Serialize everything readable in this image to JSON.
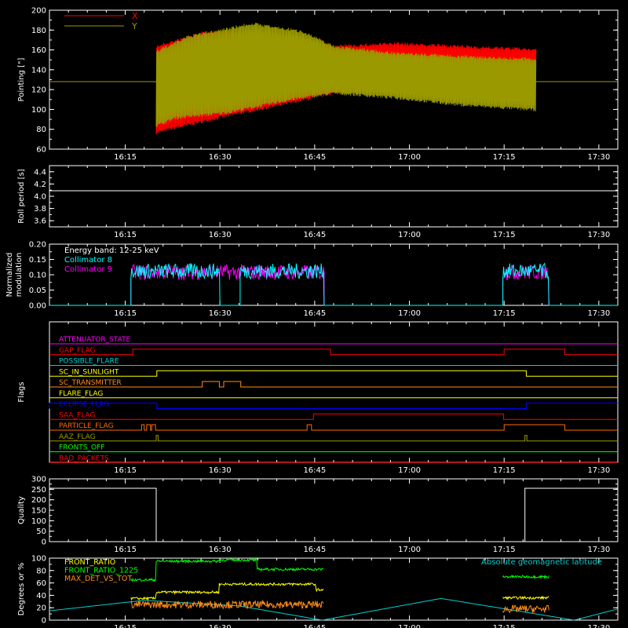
{
  "colors": {
    "background": "#000000",
    "axes": "#ffffff",
    "red": "#ff0000",
    "olive": "#9a9a00",
    "white": "#ffffff",
    "cyan": "#00ffff",
    "magenta": "#ff00ff",
    "yellow": "#ffff00",
    "green": "#00ff00",
    "orange": "#ff8c1a",
    "blue": "#0000ff",
    "teal": "#00d0d0",
    "darkorange": "#ff6a00"
  },
  "chart_data": [
    {
      "type": "line",
      "id": "pointing",
      "ylabel": "Pointing [\"]",
      "ylim": [
        60,
        200
      ],
      "yticks": [
        60,
        80,
        100,
        120,
        140,
        160,
        180,
        200
      ],
      "xlim_minutes": [
        0,
        90
      ],
      "xtick_labels": [
        "16:15",
        "16:30",
        "16:45",
        "17:00",
        "17:15",
        "17:30"
      ],
      "legend": [
        "X",
        "Y"
      ],
      "reference_line": 128,
      "data_start": "16:17",
      "data_end": "17:18",
      "series": [
        {
          "name": "X",
          "color_key": "red",
          "min_env": [
            [
              16.9,
              75
            ],
            [
              20,
              80
            ],
            [
              28,
              92
            ],
            [
              38,
              105
            ],
            [
              45,
              115
            ],
            [
              55,
              118
            ],
            [
              65,
              120
            ],
            [
              77,
              122
            ]
          ],
          "max_env": [
            [
              16.9,
              165
            ],
            [
              25,
              180
            ],
            [
              38,
              175
            ],
            [
              45,
              165
            ],
            [
              55,
              168
            ],
            [
              65,
              165
            ],
            [
              77,
              162
            ]
          ]
        },
        {
          "name": "Y",
          "color_key": "olive",
          "min_env": [
            [
              16.9,
              82
            ],
            [
              20,
              90
            ],
            [
              28,
              95
            ],
            [
              38,
              108
            ],
            [
              45,
              115
            ],
            [
              55,
              110
            ],
            [
              65,
              103
            ],
            [
              77,
              98
            ]
          ],
          "max_env": [
            [
              16.9,
              160
            ],
            [
              22,
              175
            ],
            [
              32,
              188
            ],
            [
              40,
              180
            ],
            [
              45,
              165
            ],
            [
              55,
              158
            ],
            [
              65,
              155
            ],
            [
              77,
              152
            ]
          ]
        }
      ]
    },
    {
      "type": "line",
      "id": "roll",
      "ylabel": "Roll period [s]",
      "ylim": [
        3.5,
        4.5
      ],
      "yticks": [
        3.6,
        3.8,
        4.0,
        4.2,
        4.4
      ],
      "ytick_labels": [
        "3.6",
        "3.8",
        "4.0",
        "4.2",
        "4.4"
      ],
      "value": 4.09,
      "xtick_labels": [
        "16:15",
        "16:30",
        "16:45",
        "17:00",
        "17:15",
        "17:30"
      ]
    },
    {
      "type": "line",
      "id": "modulation",
      "ylabel_lines": [
        "Normalized",
        "modulation"
      ],
      "ylim": [
        0,
        0.2
      ],
      "yticks": [
        0,
        0.05,
        0.1,
        0.15,
        0.2
      ],
      "ytick_labels": [
        "0.00",
        "0.05",
        "0.10",
        "0.15",
        "0.20"
      ],
      "legend_title": "Energy band: 12-25 keV",
      "legend": [
        "Collimator 8",
        "Collimator 9"
      ],
      "series": [
        {
          "name": "Collimator 8",
          "color_key": "cyan",
          "level": 0.112,
          "intervals": [
            [
              12.9,
              27.0
            ],
            [
              30.2,
              43.5
            ],
            [
              71.8,
              79.1
            ]
          ]
        },
        {
          "name": "Collimator 9",
          "color_key": "magenta",
          "level": 0.108,
          "intervals": [
            [
              12.9,
              43.5
            ],
            [
              71.8,
              79.1
            ]
          ]
        }
      ],
      "xtick_labels": [
        "16:15",
        "16:30",
        "16:45",
        "17:00",
        "17:15",
        "17:30"
      ]
    },
    {
      "type": "line",
      "id": "flags",
      "ylabel": "Flags",
      "flags": [
        {
          "name": "ATTENUATOR_STATE",
          "color_key": "magenta",
          "steps": []
        },
        {
          "name": "GAP_FLAG",
          "color_key": "red",
          "steps": [
            [
              13.2,
              1
            ],
            [
              44.5,
              0
            ],
            [
              72,
              1
            ],
            [
              81.6,
              0
            ]
          ]
        },
        {
          "name": "POSSIBLE_FLARE",
          "color_key": "teal",
          "steps": []
        },
        {
          "name": "SC_IN_SUNLIGHT",
          "color_key": "yellow",
          "steps": [
            [
              17,
              1
            ],
            [
              75.5,
              0
            ]
          ]
        },
        {
          "name": "SC_TRANSMITTER",
          "color_key": "orange",
          "steps": [
            [
              24.2,
              1
            ],
            [
              26.9,
              0
            ],
            [
              27.6,
              1
            ],
            [
              30.3,
              0
            ]
          ]
        },
        {
          "name": "FLARE_FLAG",
          "color_key": "yellow",
          "steps": []
        },
        {
          "name": "ECLIPSE_FLAG",
          "color_key": "blue",
          "steps": [
            [
              0,
              1
            ],
            [
              17,
              0
            ],
            [
              75.5,
              1
            ]
          ]
        },
        {
          "name": "SAA_FLAG",
          "color_key": "red",
          "steps": [
            [
              41.8,
              1
            ],
            [
              71.9,
              0
            ]
          ]
        },
        {
          "name": "PARTICLE_FLAG",
          "color_key": "darkorange",
          "steps": [
            [
              14.6,
              1
            ],
            [
              15.0,
              0
            ],
            [
              15.4,
              1
            ],
            [
              16.0,
              0
            ],
            [
              16.2,
              1
            ],
            [
              16.8,
              0
            ],
            [
              40.8,
              1
            ],
            [
              41.5,
              0
            ],
            [
              72.0,
              1
            ],
            [
              81.6,
              0
            ]
          ]
        },
        {
          "name": "AAZ_FLAG",
          "color_key": "olive",
          "steps": [
            [
              16.9,
              1
            ],
            [
              17.2,
              0
            ],
            [
              75.3,
              1
            ],
            [
              75.6,
              0
            ]
          ]
        },
        {
          "name": "FRONTS_OFF",
          "color_key": "green",
          "steps": []
        },
        {
          "name": "BAD_PACKETS",
          "color_key": "red",
          "steps": []
        }
      ],
      "xtick_labels": [
        "16:15",
        "16:30",
        "16:45",
        "17:00",
        "17:15",
        "17:30"
      ]
    },
    {
      "type": "line",
      "id": "quality",
      "ylabel": "Quality",
      "ylim": [
        0,
        300
      ],
      "yticks": [
        0,
        50,
        100,
        150,
        200,
        250,
        300
      ],
      "ytick_labels": [
        "0",
        "50",
        "100",
        "150",
        "200",
        "250",
        "300"
      ],
      "points": [
        [
          0,
          255
        ],
        [
          16.9,
          255
        ],
        [
          16.9,
          0
        ],
        [
          75.3,
          0
        ],
        [
          75.3,
          255
        ],
        [
          90,
          255
        ]
      ],
      "xtick_labels": [
        "16:15",
        "16:30",
        "16:45",
        "17:00",
        "17:15",
        "17:30"
      ]
    },
    {
      "type": "line",
      "id": "ratios",
      "ylabel": "Degrees or %",
      "ylim": [
        0,
        100
      ],
      "yticks": [
        0,
        20,
        40,
        60,
        80,
        100
      ],
      "ytick_labels": [
        "0",
        "20",
        "40",
        "60",
        "80",
        "100"
      ],
      "legend": [
        "FRONT_RATIO",
        "FRONT_RATIO_1225",
        "MAX_DET_VS_TOT"
      ],
      "legend_right": "Absolute geomagnetic latitude",
      "series": [
        {
          "name": "FRONT_RATIO",
          "color_key": "yellow",
          "segments": [
            [
              12.9,
              16.9,
              35
            ],
            [
              16.9,
              26.9,
              45
            ],
            [
              26.9,
              42.2,
              58
            ],
            [
              42.2,
              43.5,
              49
            ],
            [
              71.8,
              79.1,
              36
            ]
          ]
        },
        {
          "name": "FRONT_RATIO_1225",
          "color_key": "green",
          "segments": [
            [
              12.9,
              16.9,
              65
            ],
            [
              16.9,
              26.9,
              95
            ],
            [
              26.9,
              32.9,
              97
            ],
            [
              32.9,
              43.5,
              82
            ],
            [
              71.8,
              79.1,
              70
            ]
          ]
        },
        {
          "name": "MAX_DET_VS_TOT",
          "color_key": "orange",
          "segments": [
            [
              12.9,
              43.5,
              25
            ],
            [
              71.8,
              79.1,
              18
            ]
          ]
        },
        {
          "name": "Absolute geomagnetic latitude",
          "color_key": "teal",
          "points": [
            [
              0,
              15
            ],
            [
              15,
              32
            ],
            [
              30,
              23
            ],
            [
              43.2,
              0
            ],
            [
              62,
              35
            ],
            [
              83.1,
              0
            ],
            [
              90,
              18
            ]
          ]
        }
      ],
      "xtick_labels": [
        "16:15",
        "16:30",
        "16:45",
        "17:00",
        "17:15",
        "17:30"
      ]
    }
  ]
}
